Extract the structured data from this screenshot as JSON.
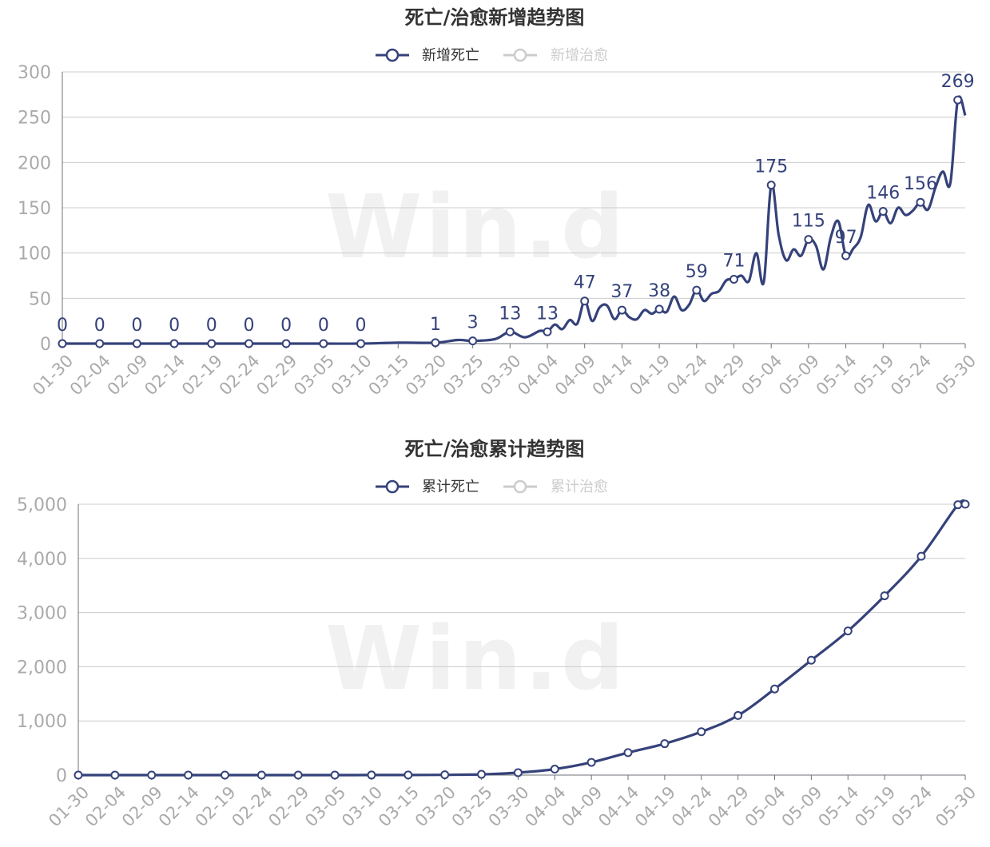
{
  "watermark": "Win.d",
  "chart_data": [
    {
      "type": "line",
      "title": "死亡/治愈新增趋势图",
      "legend": [
        {
          "name": "新增死亡",
          "active": true,
          "color": "#35427a"
        },
        {
          "name": "新增治愈",
          "active": false,
          "color": "#cccccc"
        }
      ],
      "x_ticks": [
        "01-30",
        "02-04",
        "02-09",
        "02-14",
        "02-19",
        "02-24",
        "02-29",
        "03-05",
        "03-10",
        "03-15",
        "03-20",
        "03-25",
        "03-30",
        "04-04",
        "04-09",
        "04-14",
        "04-19",
        "04-24",
        "04-29",
        "05-04",
        "05-09",
        "05-14",
        "05-19",
        "05-24",
        "05-30"
      ],
      "y_ticks": [
        "0",
        "50",
        "100",
        "150",
        "200",
        "250",
        "300"
      ],
      "ylim": [
        0,
        300
      ],
      "grid": true,
      "series": [
        {
          "name": "新增死亡",
          "color": "#35427a",
          "x": [
            "01-30",
            "02-04",
            "02-09",
            "02-14",
            "02-19",
            "02-24",
            "02-29",
            "03-05",
            "03-10",
            "03-15",
            "03-20",
            "03-23",
            "03-25",
            "03-28",
            "03-30",
            "04-01",
            "04-03",
            "04-04",
            "04-05",
            "04-06",
            "04-07",
            "04-08",
            "04-09",
            "04-10",
            "04-11",
            "04-12",
            "04-13",
            "04-14",
            "04-15",
            "04-16",
            "04-17",
            "04-18",
            "04-19",
            "04-20",
            "04-21",
            "04-22",
            "04-23",
            "04-24",
            "04-25",
            "04-26",
            "04-27",
            "04-28",
            "04-29",
            "04-30",
            "05-01",
            "05-02",
            "05-03",
            "05-04",
            "05-05",
            "05-06",
            "05-07",
            "05-08",
            "05-09",
            "05-10",
            "05-11",
            "05-12",
            "05-13",
            "05-14",
            "05-15",
            "05-16",
            "05-17",
            "05-18",
            "05-19",
            "05-20",
            "05-21",
            "05-22",
            "05-23",
            "05-24",
            "05-25",
            "05-26",
            "05-27",
            "05-28",
            "05-29",
            "05-30"
          ],
          "values": [
            0,
            0,
            0,
            0,
            0,
            0,
            0,
            0,
            0,
            1,
            1,
            4,
            3,
            5,
            13,
            7,
            14,
            13,
            21,
            16,
            26,
            22,
            47,
            25,
            40,
            42,
            27,
            37,
            29,
            27,
            37,
            33,
            38,
            35,
            52,
            37,
            43,
            59,
            47,
            55,
            58,
            70,
            71,
            75,
            69,
            100,
            68,
            175,
            120,
            92,
            104,
            97,
            115,
            108,
            82,
            118,
            135,
            97,
            105,
            118,
            153,
            135,
            146,
            133,
            150,
            142,
            147,
            156,
            148,
            172,
            190,
            177,
            269,
            252
          ],
          "labels": [
            {
              "x": "01-30",
              "v": "0"
            },
            {
              "x": "02-04",
              "v": "0"
            },
            {
              "x": "02-09",
              "v": "0"
            },
            {
              "x": "02-14",
              "v": "0"
            },
            {
              "x": "02-19",
              "v": "0"
            },
            {
              "x": "02-24",
              "v": "0"
            },
            {
              "x": "02-29",
              "v": "0"
            },
            {
              "x": "03-05",
              "v": "0"
            },
            {
              "x": "03-10",
              "v": "0"
            },
            {
              "x": "03-20",
              "v": "1"
            },
            {
              "x": "03-25",
              "v": "3"
            },
            {
              "x": "03-30",
              "v": "13"
            },
            {
              "x": "04-04",
              "v": "13"
            },
            {
              "x": "04-09",
              "v": "47"
            },
            {
              "x": "04-14",
              "v": "37"
            },
            {
              "x": "04-19",
              "v": "38"
            },
            {
              "x": "04-24",
              "v": "59"
            },
            {
              "x": "04-29",
              "v": "71"
            },
            {
              "x": "05-04",
              "v": "175"
            },
            {
              "x": "05-09",
              "v": "115"
            },
            {
              "x": "05-14",
              "v": "97"
            },
            {
              "x": "05-19",
              "v": "146"
            },
            {
              "x": "05-24",
              "v": "156"
            },
            {
              "x": "05-29",
              "v": "269"
            }
          ]
        }
      ]
    },
    {
      "type": "line",
      "title": "死亡/治愈累计趋势图",
      "legend": [
        {
          "name": "累计死亡",
          "active": true,
          "color": "#35427a"
        },
        {
          "name": "累计治愈",
          "active": false,
          "color": "#cccccc"
        }
      ],
      "x_ticks": [
        "01-30",
        "02-04",
        "02-09",
        "02-14",
        "02-19",
        "02-24",
        "02-29",
        "03-05",
        "03-10",
        "03-15",
        "03-20",
        "03-25",
        "03-30",
        "04-04",
        "04-09",
        "04-14",
        "04-19",
        "04-24",
        "04-29",
        "05-04",
        "05-09",
        "05-14",
        "05-19",
        "05-24",
        "05-30"
      ],
      "y_ticks": [
        "0",
        "1,000",
        "2,000",
        "3,000",
        "4,000",
        "5,000"
      ],
      "ylim": [
        0,
        5000
      ],
      "grid": true,
      "series": [
        {
          "name": "累计死亡",
          "color": "#35427a",
          "x": [
            "01-30",
            "02-04",
            "02-09",
            "02-14",
            "02-19",
            "02-24",
            "02-29",
            "03-05",
            "03-10",
            "03-15",
            "03-20",
            "03-25",
            "03-30",
            "04-04",
            "04-09",
            "04-14",
            "04-19",
            "04-24",
            "04-29",
            "05-04",
            "05-09",
            "05-14",
            "05-19",
            "05-24",
            "05-29",
            "05-30"
          ],
          "values": [
            0,
            0,
            0,
            0,
            0,
            0,
            0,
            0,
            1,
            2,
            5,
            14,
            45,
            110,
            235,
            415,
            580,
            800,
            1100,
            1590,
            2120,
            2660,
            3310,
            4040,
            4990,
            5000
          ],
          "markers": [
            "01-30",
            "02-04",
            "02-09",
            "02-14",
            "02-19",
            "02-24",
            "02-29",
            "03-05",
            "03-10",
            "03-15",
            "03-20",
            "03-25",
            "03-30",
            "04-04",
            "04-09",
            "04-14",
            "04-19",
            "04-24",
            "04-29",
            "05-04",
            "05-09",
            "05-14",
            "05-19",
            "05-24",
            "05-29",
            "05-30"
          ]
        }
      ]
    }
  ]
}
